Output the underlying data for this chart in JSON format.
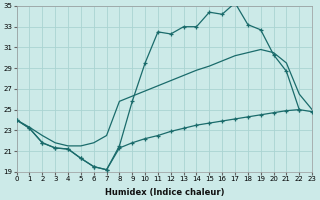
{
  "xlabel": "Humidex (Indice chaleur)",
  "bg_color": "#cceae8",
  "grid_color": "#aad4d2",
  "line_color": "#1a6b6b",
  "x_min": 0,
  "x_max": 23,
  "y_min": 19,
  "y_max": 35,
  "x_ticks": [
    0,
    1,
    2,
    3,
    4,
    5,
    6,
    7,
    8,
    9,
    10,
    11,
    12,
    13,
    14,
    15,
    16,
    17,
    18,
    19,
    20,
    21,
    22,
    23
  ],
  "y_ticks": [
    19,
    21,
    23,
    25,
    27,
    29,
    31,
    33,
    35
  ],
  "line_top_x": [
    0,
    1,
    2,
    3,
    4,
    5,
    6,
    7,
    8,
    9,
    10,
    11,
    12,
    13,
    14,
    15,
    16,
    17,
    18,
    19,
    20,
    21,
    22
  ],
  "line_top_y": [
    24.0,
    23.2,
    21.8,
    21.3,
    21.2,
    20.3,
    19.5,
    19.2,
    21.5,
    25.8,
    29.5,
    32.5,
    32.3,
    33.0,
    33.0,
    34.4,
    34.2,
    35.3,
    33.2,
    32.7,
    30.3,
    28.7,
    25.0
  ],
  "line_mid_x": [
    0,
    1,
    2,
    3,
    4,
    5,
    6,
    7,
    8,
    9,
    10,
    11,
    12,
    13,
    14,
    15,
    16,
    17,
    18,
    19,
    20,
    21,
    22,
    23
  ],
  "line_mid_y": [
    24.0,
    23.3,
    22.5,
    21.8,
    21.5,
    21.5,
    21.8,
    22.5,
    25.8,
    26.3,
    26.8,
    27.3,
    27.8,
    28.3,
    28.8,
    29.2,
    29.7,
    30.2,
    30.5,
    30.8,
    30.5,
    29.5,
    26.5,
    25.0
  ],
  "line_bot_x": [
    0,
    1,
    2,
    3,
    4,
    5,
    6,
    7,
    8,
    9,
    10,
    11,
    12,
    13,
    14,
    15,
    16,
    17,
    18,
    19,
    20,
    21,
    22,
    23
  ],
  "line_bot_y": [
    24.0,
    23.2,
    21.8,
    21.3,
    21.2,
    20.3,
    19.5,
    19.2,
    21.3,
    21.8,
    22.2,
    22.5,
    22.9,
    23.2,
    23.5,
    23.7,
    23.9,
    24.1,
    24.3,
    24.5,
    24.7,
    24.9,
    25.0,
    24.8
  ]
}
